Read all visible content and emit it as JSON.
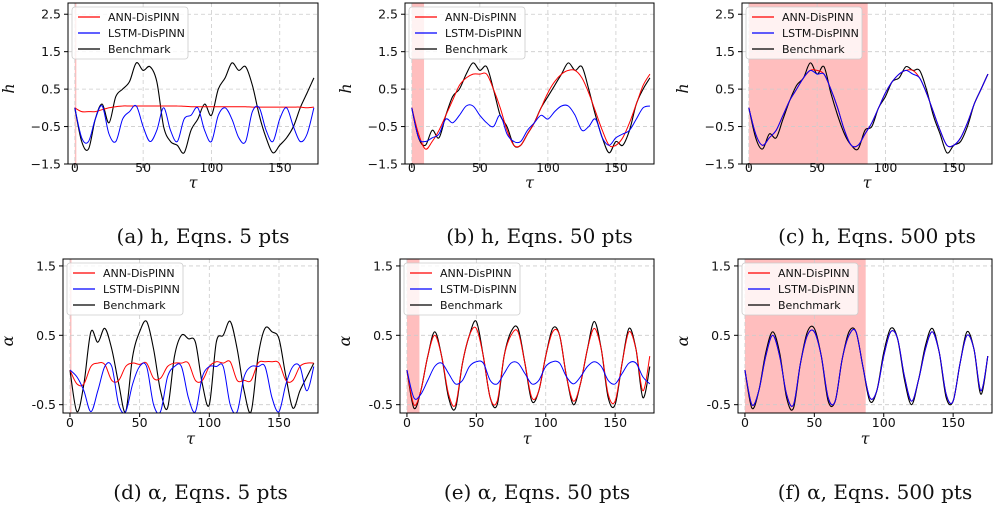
{
  "figure": {
    "legend_entries": [
      "ANN-DisPINN",
      "LSTM-DisPINN",
      "Benchmark"
    ],
    "colors": {
      "ann": "#ff0000",
      "lstm": "#0000ff",
      "benchmark": "#000000",
      "shade": "#ffb3b3",
      "grid": "#cccccc"
    }
  },
  "chart_data": [
    {
      "id": "a",
      "type": "line",
      "caption": "(a) h, Eqns. 5 pts",
      "xlabel": "τ",
      "ylabel": "h",
      "xlim": [
        -5,
        178
      ],
      "ylim": [
        -1.5,
        2.8
      ],
      "xticks": [
        "0",
        "50",
        "100",
        "150"
      ],
      "yticks": [
        "−1.5",
        "−0.5",
        "0.5",
        "1.5",
        "2.5"
      ],
      "training_window": [
        0,
        1
      ],
      "legend": "upper-left",
      "grid": true,
      "x": [
        0,
        5,
        10,
        15,
        20,
        25,
        30,
        35,
        40,
        45,
        50,
        55,
        60,
        65,
        70,
        75,
        80,
        85,
        90,
        95,
        100,
        105,
        110,
        115,
        120,
        125,
        130,
        135,
        140,
        145,
        150,
        155,
        160,
        165,
        170,
        175
      ],
      "series": [
        {
          "name": "Benchmark",
          "values": [
            0.0,
            -0.9,
            -1.1,
            -0.3,
            0.1,
            -0.4,
            0.3,
            0.5,
            0.7,
            1.2,
            1.0,
            1.1,
            0.7,
            -0.5,
            -0.9,
            -1.0,
            -1.2,
            -0.6,
            -0.3,
            0.1,
            -0.2,
            0.5,
            0.8,
            1.2,
            1.0,
            1.1,
            0.6,
            -0.2,
            -0.8,
            -1.2,
            -1.0,
            -0.8,
            -0.5,
            0.0,
            0.4,
            0.8
          ]
        },
        {
          "name": "ANN-DisPINN",
          "values": [
            0.0,
            -0.1,
            -0.1,
            -0.1,
            -0.05,
            0.0,
            0.03,
            0.05,
            0.05,
            0.05,
            0.05,
            0.05,
            0.05,
            0.05,
            0.05,
            0.05,
            0.04,
            0.03,
            0.03,
            0.03,
            0.03,
            0.03,
            0.03,
            0.03,
            0.03,
            0.03,
            0.02,
            0.02,
            0.02,
            0.02,
            0.02,
            0.02,
            0.02,
            0.02,
            0.0,
            0.02
          ]
        },
        {
          "name": "LSTM-DisPINN",
          "values": [
            0.0,
            -0.8,
            -0.9,
            -0.3,
            0.05,
            -0.7,
            -0.9,
            -0.3,
            -0.1,
            0.05,
            -0.5,
            -0.9,
            -0.6,
            0.0,
            -0.6,
            -0.9,
            -0.3,
            -0.2,
            0.0,
            -0.6,
            -0.9,
            -0.2,
            0.0,
            -0.3,
            -0.8,
            -0.9,
            -0.1,
            0.0,
            -0.6,
            -0.9,
            -0.3,
            0.0,
            -0.5,
            -0.9,
            -0.7,
            0.0
          ]
        }
      ]
    },
    {
      "id": "b",
      "type": "line",
      "caption": "(b) h, Eqns. 50 pts",
      "xlabel": "τ",
      "ylabel": "h",
      "xlim": [
        -5,
        178
      ],
      "ylim": [
        -1.5,
        2.8
      ],
      "xticks": [
        "0",
        "50",
        "100",
        "150"
      ],
      "yticks": [
        "−1.5",
        "−0.5",
        "0.5",
        "1.5",
        "2.5"
      ],
      "training_window": [
        0,
        9
      ],
      "legend": "upper-left",
      "grid": true,
      "x": [
        0,
        5,
        10,
        15,
        20,
        25,
        30,
        35,
        40,
        45,
        50,
        55,
        60,
        65,
        70,
        75,
        80,
        85,
        90,
        95,
        100,
        105,
        110,
        115,
        120,
        125,
        130,
        135,
        140,
        145,
        150,
        155,
        160,
        165,
        170,
        175
      ],
      "series": [
        {
          "name": "Benchmark",
          "values": [
            0.0,
            -0.8,
            -1.0,
            -0.6,
            -0.8,
            -0.2,
            0.3,
            0.5,
            0.9,
            1.2,
            1.0,
            1.1,
            0.5,
            -0.2,
            -0.5,
            -1.0,
            -1.0,
            -0.7,
            -0.4,
            0.0,
            0.3,
            0.6,
            0.9,
            1.2,
            1.0,
            1.1,
            0.5,
            -0.2,
            -0.8,
            -1.2,
            -0.9,
            -1.0,
            -0.6,
            0.1,
            0.5,
            0.8
          ]
        },
        {
          "name": "ANN-DisPINN",
          "values": [
            0.0,
            -0.7,
            -1.1,
            -0.9,
            -0.6,
            -0.2,
            0.2,
            0.6,
            0.8,
            0.9,
            0.9,
            0.9,
            0.5,
            0.0,
            -0.6,
            -1.0,
            -1.0,
            -0.7,
            -0.4,
            0.0,
            0.4,
            0.7,
            0.9,
            1.0,
            1.0,
            0.8,
            0.4,
            -0.1,
            -0.6,
            -1.0,
            -1.0,
            -0.8,
            -0.4,
            0.1,
            0.6,
            0.9
          ]
        },
        {
          "name": "LSTM-DisPINN",
          "values": [
            0.0,
            -0.8,
            -0.9,
            -0.8,
            -0.7,
            -0.3,
            -0.4,
            -0.2,
            0.05,
            0.05,
            -0.2,
            -0.4,
            -0.5,
            -0.2,
            -0.7,
            -0.9,
            -0.9,
            -0.6,
            -0.4,
            -0.2,
            -0.3,
            -0.1,
            0.05,
            0.05,
            -0.2,
            -0.6,
            -0.5,
            -0.3,
            -0.8,
            -1.0,
            -0.8,
            -0.7,
            -0.6,
            -0.3,
            0.0,
            0.05
          ]
        }
      ]
    },
    {
      "id": "c",
      "type": "line",
      "caption": "(c) h, Eqns. 500 pts",
      "xlabel": "τ",
      "ylabel": "h",
      "xlim": [
        -5,
        178
      ],
      "ylim": [
        -1.5,
        2.8
      ],
      "xticks": [
        "0",
        "50",
        "100",
        "150"
      ],
      "yticks": [
        "−1.5",
        "−0.5",
        "0.5",
        "1.5",
        "2.5"
      ],
      "training_window": [
        0,
        87
      ],
      "legend": "upper-left",
      "grid": true,
      "x": [
        0,
        5,
        10,
        15,
        20,
        25,
        30,
        35,
        40,
        45,
        50,
        55,
        60,
        65,
        70,
        75,
        80,
        85,
        90,
        95,
        100,
        105,
        110,
        115,
        120,
        125,
        130,
        135,
        140,
        145,
        150,
        155,
        160,
        165,
        170,
        175
      ],
      "series": [
        {
          "name": "Benchmark",
          "values": [
            0.0,
            -0.8,
            -1.1,
            -0.7,
            -0.8,
            -0.3,
            0.2,
            0.6,
            0.8,
            1.2,
            0.9,
            1.1,
            0.4,
            -0.2,
            -0.7,
            -1.0,
            -1.1,
            -0.6,
            -0.5,
            0.0,
            0.3,
            0.7,
            0.8,
            1.1,
            1.0,
            1.0,
            0.5,
            -0.2,
            -0.7,
            -1.2,
            -1.0,
            -0.9,
            -0.5,
            0.1,
            0.5,
            0.9
          ]
        },
        {
          "name": "ANN-DisPINN",
          "values": [
            0.0,
            -0.7,
            -1.0,
            -0.8,
            -0.6,
            -0.2,
            0.2,
            0.5,
            0.8,
            1.0,
            1.0,
            0.9,
            0.5,
            0.0,
            -0.6,
            -1.0,
            -1.0,
            -0.7,
            -0.4,
            0.0,
            0.4,
            0.7,
            0.9,
            1.0,
            1.0,
            0.8,
            0.4,
            -0.1,
            -0.6,
            -1.0,
            -1.0,
            -0.8,
            -0.4,
            0.1,
            0.5,
            0.9
          ]
        },
        {
          "name": "LSTM-DisPINN",
          "values": [
            0.0,
            -0.7,
            -1.0,
            -0.8,
            -0.6,
            -0.2,
            0.2,
            0.5,
            0.8,
            1.0,
            0.9,
            0.9,
            0.5,
            0.0,
            -0.6,
            -1.0,
            -1.0,
            -0.7,
            -0.4,
            0.0,
            0.4,
            0.7,
            0.9,
            1.0,
            0.9,
            0.8,
            0.4,
            -0.1,
            -0.6,
            -1.0,
            -1.0,
            -0.8,
            -0.4,
            0.1,
            0.5,
            0.9
          ]
        }
      ]
    },
    {
      "id": "d",
      "type": "line",
      "caption": "(d) α, Eqns. 5 pts",
      "xlabel": "τ",
      "ylabel": "α",
      "xlim": [
        -5,
        178
      ],
      "ylim": [
        -0.62,
        1.6
      ],
      "xticks": [
        "0",
        "50",
        "100",
        "150"
      ],
      "yticks": [
        "-0.5",
        "0.5",
        "1.5"
      ],
      "training_window": [
        0,
        1
      ],
      "legend": "upper-left",
      "grid": true,
      "x": [
        0,
        5,
        10,
        15,
        20,
        25,
        30,
        35,
        40,
        45,
        50,
        55,
        60,
        65,
        70,
        75,
        80,
        85,
        90,
        95,
        100,
        105,
        110,
        115,
        120,
        125,
        130,
        135,
        140,
        145,
        150,
        155,
        160,
        165,
        170,
        175
      ],
      "series": [
        {
          "name": "Benchmark",
          "values": [
            0.0,
            -0.6,
            -0.2,
            0.55,
            0.4,
            0.6,
            0.3,
            -0.2,
            -0.6,
            0.2,
            0.55,
            0.7,
            0.3,
            -0.3,
            -0.55,
            0.2,
            0.5,
            0.45,
            0.4,
            -0.2,
            -0.5,
            0.4,
            0.5,
            0.7,
            0.3,
            -0.3,
            -0.6,
            0.2,
            0.6,
            0.55,
            0.45,
            -0.1,
            -0.55,
            -0.3,
            -0.1,
            0.1
          ]
        },
        {
          "name": "ANN-DisPINN",
          "values": [
            0.0,
            -0.2,
            -0.2,
            0.05,
            0.1,
            0.08,
            -0.15,
            -0.15,
            0.05,
            0.1,
            0.08,
            0.1,
            -0.12,
            -0.12,
            0.05,
            0.1,
            0.1,
            0.1,
            -0.15,
            -0.15,
            0.05,
            0.12,
            0.1,
            0.12,
            -0.15,
            -0.15,
            -0.15,
            0.1,
            0.12,
            0.12,
            0.1,
            -0.15,
            -0.15,
            0.05,
            0.1,
            0.1
          ]
        },
        {
          "name": "LSTM-DisPINN",
          "values": [
            0.0,
            -0.1,
            -0.3,
            -0.6,
            -0.3,
            0.05,
            0.05,
            -0.5,
            -0.6,
            -0.2,
            0.05,
            0.05,
            -0.5,
            -0.6,
            -0.1,
            0.05,
            0.05,
            -0.4,
            -0.6,
            -0.1,
            0.05,
            0.05,
            0.05,
            -0.5,
            -0.6,
            -0.1,
            0.05,
            0.05,
            0.05,
            -0.4,
            -0.6,
            -0.2,
            0.05,
            0.05,
            -0.3,
            0.05
          ]
        }
      ]
    },
    {
      "id": "e",
      "type": "line",
      "caption": "(e) α, Eqns. 50 pts",
      "xlabel": "τ",
      "ylabel": "α",
      "xlim": [
        -5,
        178
      ],
      "ylim": [
        -0.62,
        1.6
      ],
      "xticks": [
        "0",
        "50",
        "100",
        "150"
      ],
      "yticks": [
        "-0.5",
        "0.5",
        "1.5"
      ],
      "training_window": [
        0,
        9
      ],
      "legend": "upper-left",
      "grid": true,
      "x": [
        0,
        5,
        10,
        15,
        20,
        25,
        30,
        35,
        40,
        45,
        50,
        55,
        60,
        65,
        70,
        75,
        80,
        85,
        90,
        95,
        100,
        105,
        110,
        115,
        120,
        125,
        130,
        135,
        140,
        145,
        150,
        155,
        160,
        165,
        170,
        175
      ],
      "series": [
        {
          "name": "Benchmark",
          "values": [
            0.0,
            -0.55,
            -0.3,
            0.2,
            0.55,
            0.2,
            -0.4,
            -0.55,
            0.1,
            0.5,
            0.7,
            0.2,
            -0.4,
            -0.5,
            0.2,
            0.55,
            0.6,
            0.1,
            -0.45,
            -0.3,
            0.2,
            0.6,
            0.5,
            -0.1,
            -0.5,
            -0.2,
            0.3,
            0.7,
            0.3,
            -0.4,
            -0.5,
            0.1,
            0.6,
            0.3,
            -0.4,
            0.05
          ]
        },
        {
          "name": "ANN-DisPINN",
          "values": [
            0.0,
            -0.5,
            -0.3,
            0.2,
            0.5,
            0.2,
            -0.35,
            -0.5,
            0.1,
            0.5,
            0.6,
            0.2,
            -0.4,
            -0.45,
            0.2,
            0.5,
            0.55,
            0.1,
            -0.4,
            -0.3,
            0.2,
            0.55,
            0.5,
            -0.1,
            -0.45,
            -0.2,
            0.3,
            0.6,
            0.3,
            -0.35,
            -0.45,
            0.1,
            0.55,
            0.3,
            -0.3,
            0.2
          ]
        },
        {
          "name": "LSTM-DisPINN",
          "values": [
            0.0,
            -0.4,
            -0.35,
            -0.15,
            0.05,
            0.1,
            -0.05,
            -0.2,
            -0.15,
            0.05,
            0.12,
            0.1,
            -0.15,
            -0.2,
            -0.05,
            0.1,
            0.1,
            -0.05,
            -0.2,
            -0.15,
            0.05,
            0.12,
            0.1,
            -0.1,
            -0.2,
            -0.1,
            0.05,
            0.12,
            0.05,
            -0.15,
            -0.2,
            -0.05,
            0.1,
            0.1,
            -0.1,
            -0.2
          ]
        }
      ]
    },
    {
      "id": "f",
      "type": "line",
      "caption": "(f) α, Eqns. 500 pts",
      "xlabel": "τ",
      "ylabel": "α",
      "xlim": [
        -5,
        178
      ],
      "ylim": [
        -0.62,
        1.6
      ],
      "xticks": [
        "0",
        "50",
        "100",
        "150"
      ],
      "yticks": [
        "-0.5",
        "0.5",
        "1.5"
      ],
      "training_window": [
        0,
        87
      ],
      "legend": "upper-left",
      "grid": true,
      "x": [
        0,
        5,
        10,
        15,
        20,
        25,
        30,
        35,
        40,
        45,
        50,
        55,
        60,
        65,
        70,
        75,
        80,
        85,
        90,
        95,
        100,
        105,
        110,
        115,
        120,
        125,
        130,
        135,
        140,
        145,
        150,
        155,
        160,
        165,
        170,
        175
      ],
      "series": [
        {
          "name": "Benchmark",
          "values": [
            0.0,
            -0.55,
            -0.3,
            0.25,
            0.55,
            0.25,
            -0.4,
            -0.55,
            0.1,
            0.55,
            0.6,
            0.2,
            -0.45,
            -0.45,
            0.15,
            0.55,
            0.55,
            0.05,
            -0.45,
            -0.3,
            0.25,
            0.6,
            0.45,
            -0.15,
            -0.5,
            -0.15,
            0.35,
            0.6,
            0.25,
            -0.4,
            -0.45,
            0.1,
            0.55,
            0.3,
            -0.35,
            0.2
          ]
        },
        {
          "name": "ANN-DisPINN",
          "values": [
            0.0,
            -0.5,
            -0.3,
            0.2,
            0.5,
            0.2,
            -0.35,
            -0.5,
            0.1,
            0.5,
            0.55,
            0.2,
            -0.4,
            -0.45,
            0.15,
            0.5,
            0.55,
            0.05,
            -0.4,
            -0.3,
            0.2,
            0.55,
            0.45,
            -0.1,
            -0.45,
            -0.15,
            0.3,
            0.55,
            0.25,
            -0.35,
            -0.45,
            0.1,
            0.5,
            0.3,
            -0.3,
            0.2
          ]
        },
        {
          "name": "LSTM-DisPINN",
          "values": [
            0.0,
            -0.5,
            -0.3,
            0.2,
            0.5,
            0.2,
            -0.35,
            -0.5,
            0.1,
            0.5,
            0.55,
            0.2,
            -0.4,
            -0.45,
            0.15,
            0.5,
            0.55,
            0.05,
            -0.4,
            -0.3,
            0.2,
            0.55,
            0.45,
            -0.1,
            -0.45,
            -0.15,
            0.3,
            0.55,
            0.25,
            -0.35,
            -0.45,
            0.1,
            0.5,
            0.3,
            -0.3,
            0.2
          ]
        }
      ]
    }
  ]
}
